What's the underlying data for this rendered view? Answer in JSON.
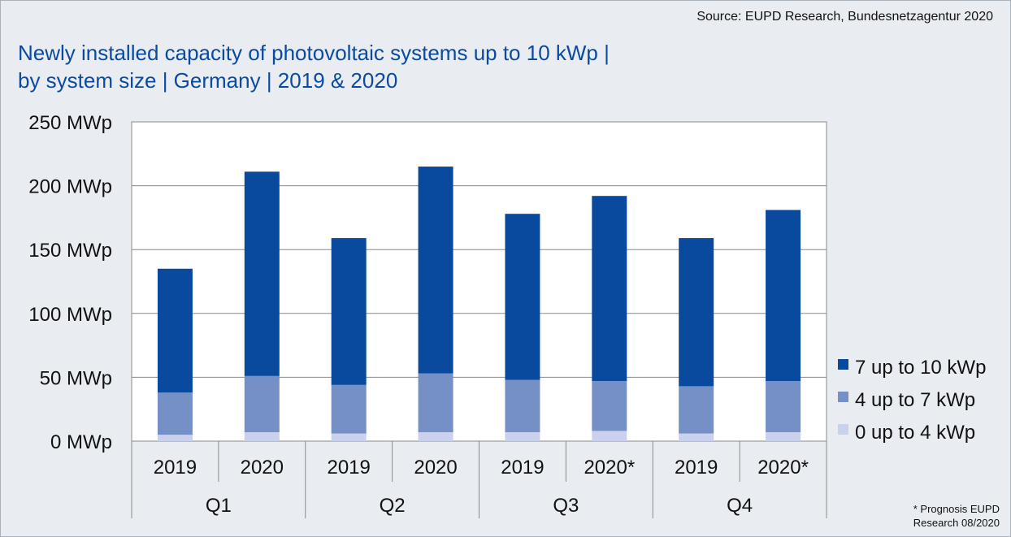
{
  "source": "Source: EUPD Research, Bundesnetzagentur 2020",
  "title_line1": "Newly installed capacity of photovoltaic systems up to 10 kWp  |",
  "title_line2": "by system size | Germany | 2019 & 2020",
  "footnote_line1": "* Prognosis EUPD",
  "footnote_line2": "Research 08/2020",
  "chart_data": {
    "type": "bar",
    "stacked": true,
    "categories": [
      "2019",
      "2020",
      "2019",
      "2020",
      "2019",
      "2020*",
      "2019",
      "2020*"
    ],
    "groups": [
      {
        "label": "Q1",
        "span": 2
      },
      {
        "label": "Q2",
        "span": 2
      },
      {
        "label": "Q3",
        "span": 2
      },
      {
        "label": "Q4",
        "span": 2
      }
    ],
    "series": [
      {
        "name": "0 up to 4 kWp",
        "color": "#c9d1ec",
        "values": [
          5,
          7,
          6,
          7,
          7,
          8,
          6,
          7
        ]
      },
      {
        "name": "4 up to 7 kWp",
        "color": "#7490c5",
        "values": [
          33,
          44,
          38,
          46,
          41,
          39,
          37,
          40
        ]
      },
      {
        "name": "7 up to 10 kWp",
        "color": "#0a4a9e",
        "values": [
          97,
          160,
          115,
          162,
          130,
          145,
          116,
          134
        ]
      }
    ],
    "yticks": [
      "0 MWp",
      "50 MWp",
      "100 MWp",
      "150 MWp",
      "200 MWp",
      "250 MWp"
    ],
    "ylim": [
      0,
      250
    ],
    "ystep": 50,
    "grid": true,
    "legend_position": "right"
  }
}
